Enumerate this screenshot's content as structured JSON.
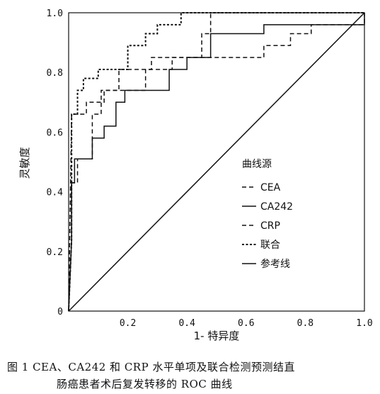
{
  "chart_data": {
    "type": "line",
    "title": "",
    "xlabel": "1- 特异度",
    "ylabel": "灵敏度",
    "xlim": [
      0,
      1
    ],
    "ylim": [
      0,
      1
    ],
    "x_ticks": [
      "0.2",
      "0.4",
      "0.6",
      "0.8",
      "1.0"
    ],
    "y_ticks": [
      "0",
      "0.2",
      "0.4",
      "0.6",
      "0.8",
      "1.0"
    ],
    "grid": false,
    "legend_title": "曲线源",
    "legend_position": "center-right",
    "series": [
      {
        "name": "CEA",
        "style": "dashed",
        "points": [
          [
            0,
            0
          ],
          [
            0.01,
            0.24
          ],
          [
            0.01,
            0.43
          ],
          [
            0.03,
            0.43
          ],
          [
            0.03,
            0.51
          ],
          [
            0.08,
            0.51
          ],
          [
            0.08,
            0.66
          ],
          [
            0.11,
            0.66
          ],
          [
            0.11,
            0.74
          ],
          [
            0.17,
            0.74
          ],
          [
            0.17,
            0.81
          ],
          [
            0.28,
            0.81
          ],
          [
            0.28,
            0.85
          ],
          [
            0.45,
            0.85
          ],
          [
            0.45,
            0.93
          ],
          [
            0.48,
            0.93
          ],
          [
            0.48,
            1.0
          ],
          [
            1.0,
            1.0
          ]
        ]
      },
      {
        "name": "CA242",
        "style": "solid",
        "points": [
          [
            0,
            0
          ],
          [
            0.01,
            0.24
          ],
          [
            0.01,
            0.43
          ],
          [
            0.02,
            0.43
          ],
          [
            0.02,
            0.51
          ],
          [
            0.08,
            0.51
          ],
          [
            0.08,
            0.58
          ],
          [
            0.12,
            0.58
          ],
          [
            0.12,
            0.62
          ],
          [
            0.16,
            0.62
          ],
          [
            0.16,
            0.7
          ],
          [
            0.19,
            0.7
          ],
          [
            0.19,
            0.74
          ],
          [
            0.34,
            0.74
          ],
          [
            0.34,
            0.81
          ],
          [
            0.4,
            0.81
          ],
          [
            0.4,
            0.85
          ],
          [
            0.48,
            0.85
          ],
          [
            0.48,
            0.93
          ],
          [
            0.66,
            0.93
          ],
          [
            0.66,
            0.96
          ],
          [
            1.0,
            0.96
          ],
          [
            1.0,
            1.0
          ]
        ]
      },
      {
        "name": "CRP",
        "style": "dashed",
        "points": [
          [
            0,
            0
          ],
          [
            0.01,
            0.66
          ],
          [
            0.06,
            0.66
          ],
          [
            0.06,
            0.7
          ],
          [
            0.12,
            0.7
          ],
          [
            0.12,
            0.74
          ],
          [
            0.26,
            0.74
          ],
          [
            0.26,
            0.81
          ],
          [
            0.35,
            0.81
          ],
          [
            0.35,
            0.85
          ],
          [
            0.66,
            0.85
          ],
          [
            0.66,
            0.89
          ],
          [
            0.75,
            0.89
          ],
          [
            0.75,
            0.93
          ],
          [
            0.82,
            0.93
          ],
          [
            0.82,
            0.96
          ],
          [
            1.0,
            0.96
          ],
          [
            1.0,
            1.0
          ]
        ]
      },
      {
        "name": "联合",
        "style": "dotted",
        "points": [
          [
            0,
            0
          ],
          [
            0.01,
            0.24
          ],
          [
            0.01,
            0.66
          ],
          [
            0.03,
            0.66
          ],
          [
            0.03,
            0.74
          ],
          [
            0.05,
            0.74
          ],
          [
            0.05,
            0.78
          ],
          [
            0.1,
            0.78
          ],
          [
            0.1,
            0.81
          ],
          [
            0.2,
            0.81
          ],
          [
            0.2,
            0.89
          ],
          [
            0.26,
            0.89
          ],
          [
            0.26,
            0.93
          ],
          [
            0.3,
            0.93
          ],
          [
            0.3,
            0.96
          ],
          [
            0.38,
            0.96
          ],
          [
            0.38,
            1.0
          ],
          [
            1.0,
            1.0
          ]
        ]
      },
      {
        "name": "参考线",
        "style": "solid",
        "points": [
          [
            0,
            0
          ],
          [
            1,
            1
          ]
        ]
      }
    ]
  },
  "caption": {
    "line1": "图 1  CEA、CA242 和 CRP 水平单项及联合检测预测结直",
    "line2": "肠癌患者术后复发转移的 ROC 曲线"
  }
}
